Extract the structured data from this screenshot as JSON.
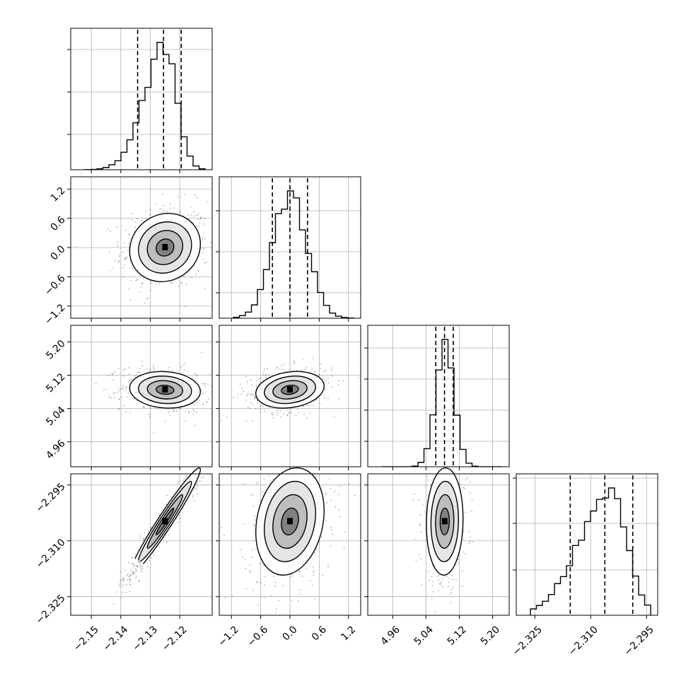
{
  "chart_data": {
    "type": "corner",
    "colors": {
      "axes": "#000000",
      "grid": "#b0b0b0",
      "points": "#222222",
      "background": "#ffffff"
    },
    "grid": true,
    "parameters": [
      {
        "range": [
          -2.157,
          -2.109
        ],
        "ticks": [
          -2.15,
          -2.14,
          -2.13,
          -2.12
        ],
        "tick_labels": [
          "−2.15",
          "−2.14",
          "−2.13",
          "−2.12"
        ],
        "mean": -2.125,
        "sd": 0.006,
        "quantiles": [
          -2.1343,
          -2.1255,
          -2.1195
        ]
      },
      {
        "range": [
          -1.45,
          1.45
        ],
        "ticks": [
          -1.2,
          -0.6,
          0.0,
          0.6,
          1.2
        ],
        "tick_labels": [
          "−1.2",
          "−0.6",
          "0.0",
          "0.6",
          "1.2"
        ],
        "mean": 0.0,
        "sd": 0.35,
        "quantiles": [
          -0.36,
          0.0,
          0.36
        ]
      },
      {
        "range": [
          4.9,
          5.24
        ],
        "ticks": [
          4.96,
          5.04,
          5.12,
          5.2
        ],
        "tick_labels": [
          "4.96",
          "5.04",
          "5.12",
          "5.20"
        ],
        "mean": 5.085,
        "sd": 0.022,
        "quantiles": [
          5.0635,
          5.0845,
          5.1055
        ]
      },
      {
        "range": [
          -2.33,
          -2.292
        ],
        "ticks": [
          -2.325,
          -2.31,
          -2.295
        ],
        "tick_labels": [
          "−2.325",
          "−2.310",
          "−2.295"
        ],
        "mean": -2.3048,
        "sd": 0.0072,
        "quantiles": [
          -2.3155,
          -2.3062,
          -2.2987
        ]
      }
    ],
    "histogram_ticks": [
      [
        0.25,
        0.55,
        0.85
      ],
      [
        0.18,
        0.47,
        0.76
      ],
      [
        0.18,
        0.4,
        0.62,
        0.84
      ],
      [
        0.32,
        0.65,
        0.97
      ]
    ],
    "correlations": [
      [
        0,
        0,
        0,
        0
      ],
      [
        0.1,
        0,
        0,
        0
      ],
      [
        -0.1,
        0.2,
        0,
        0
      ],
      [
        0.97,
        0.2,
        0.05,
        0
      ]
    ],
    "contour_levels_sigma": [
      0.5,
      1.0,
      1.5,
      2.0
    ]
  }
}
